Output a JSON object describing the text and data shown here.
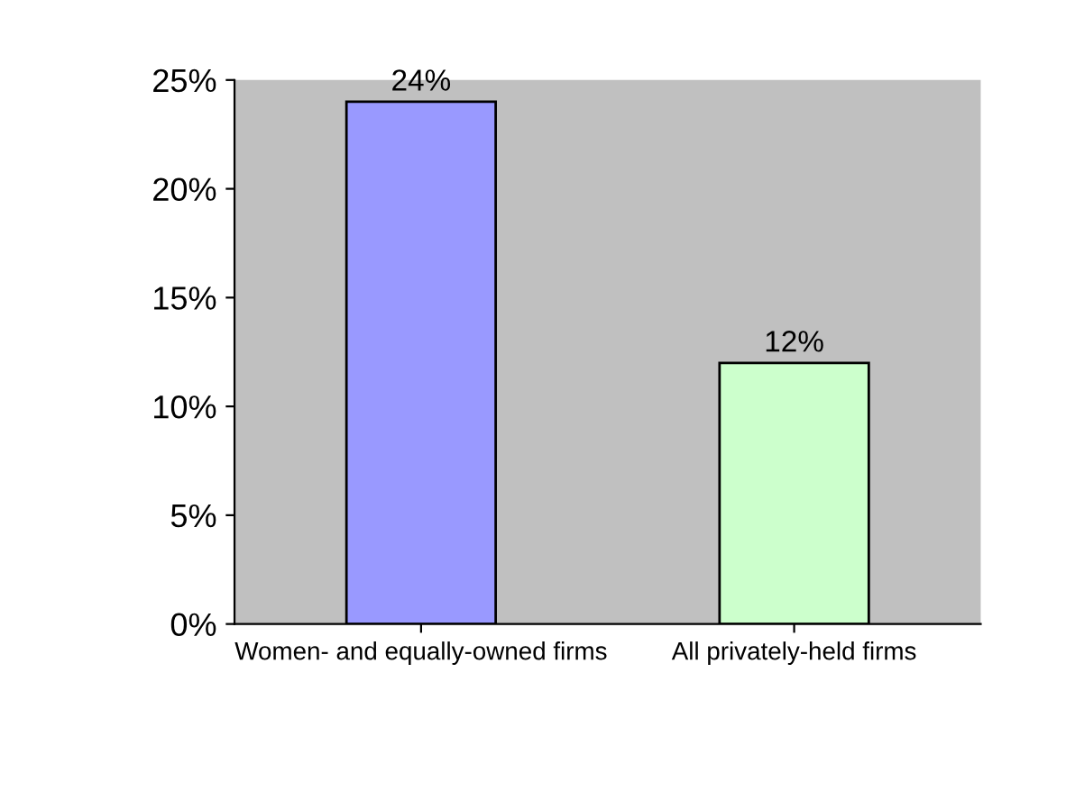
{
  "chart_data": {
    "type": "bar",
    "categories": [
      "Women- and equally-owned firms",
      "All privately-held firms"
    ],
    "values": [
      24,
      12
    ],
    "colors": [
      "#9999ff",
      "#ccffcc"
    ],
    "value_labels": [
      "24%",
      "12%"
    ],
    "ylim": [
      0,
      25
    ],
    "yticks": [
      {
        "value": 0,
        "label": "0%"
      },
      {
        "value": 5,
        "label": "5%"
      },
      {
        "value": 10,
        "label": "10%"
      },
      {
        "value": 15,
        "label": "15%"
      },
      {
        "value": 20,
        "label": "20%"
      },
      {
        "value": 25,
        "label": "25%"
      }
    ],
    "grid": false,
    "legend": false
  }
}
